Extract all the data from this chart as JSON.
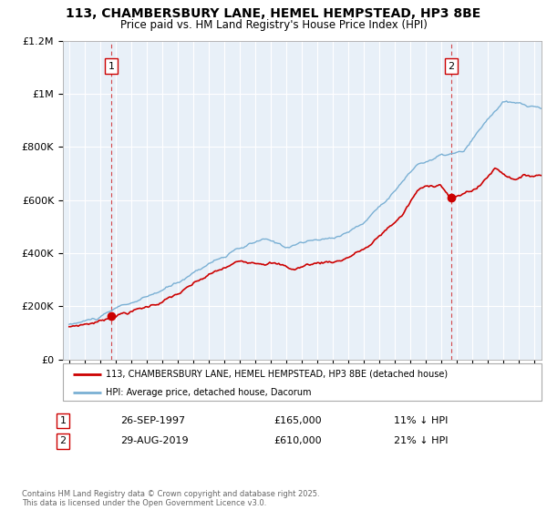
{
  "title": "113, CHAMBERSBURY LANE, HEMEL HEMPSTEAD, HP3 8BE",
  "subtitle": "Price paid vs. HM Land Registry's House Price Index (HPI)",
  "title_fontsize": 10,
  "subtitle_fontsize": 8.5,
  "background_color": "#ffffff",
  "plot_bg_color": "#e8f0f8",
  "grid_color": "#ffffff",
  "red_color": "#cc0000",
  "blue_color": "#7ab0d4",
  "ylim": [
    0,
    1200000
  ],
  "yticks": [
    0,
    200000,
    400000,
    600000,
    800000,
    1000000,
    1200000
  ],
  "ytick_labels": [
    "£0",
    "£200K",
    "£400K",
    "£600K",
    "£800K",
    "£1M",
    "£1.2M"
  ],
  "sale1_year": 1997.73,
  "sale1_price": 165000,
  "sale1_label": "1",
  "sale2_year": 2019.66,
  "sale2_price": 610000,
  "sale2_label": "2",
  "legend_red_label": "113, CHAMBERSBURY LANE, HEMEL HEMPSTEAD, HP3 8BE (detached house)",
  "legend_blue_label": "HPI: Average price, detached house, Dacorum",
  "annotation1_date": "26-SEP-1997",
  "annotation1_price": "£165,000",
  "annotation1_hpi": "11% ↓ HPI",
  "annotation2_date": "29-AUG-2019",
  "annotation2_price": "£610,000",
  "annotation2_hpi": "21% ↓ HPI",
  "footer": "Contains HM Land Registry data © Crown copyright and database right 2025.\nThis data is licensed under the Open Government Licence v3.0."
}
